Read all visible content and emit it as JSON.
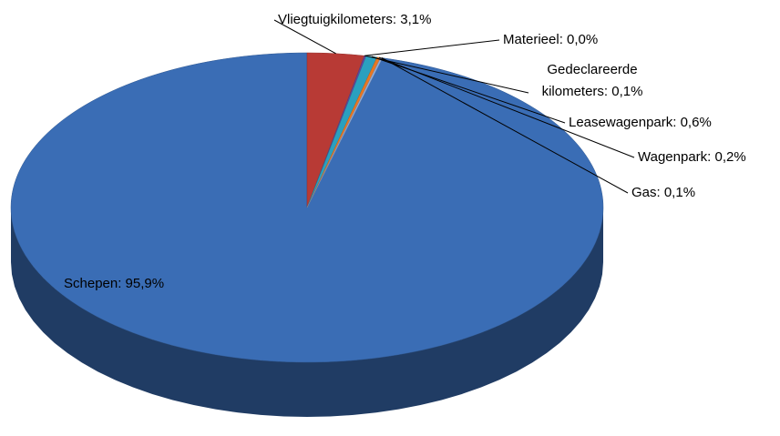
{
  "chart_data": {
    "type": "pie",
    "values": [
      95.9,
      3.1,
      0.0,
      0.1,
      0.6,
      0.2,
      0.1
    ],
    "value_labels": [
      "Schepen: 95,9%",
      "Vliegtuigkilometers: 3,1%",
      "Materieel: 0,0%",
      "Gedeclareerde kilometers: 0,1%",
      "Leasewagenpark: 0,6%",
      "Wagenpark: 0,2%",
      "Gas: 0,1%"
    ],
    "colors": [
      "#3a6db5",
      "#b83a35",
      "#8db33a",
      "#6a3f98",
      "#2aa0bf",
      "#e87722",
      "#94aedb"
    ]
  }
}
